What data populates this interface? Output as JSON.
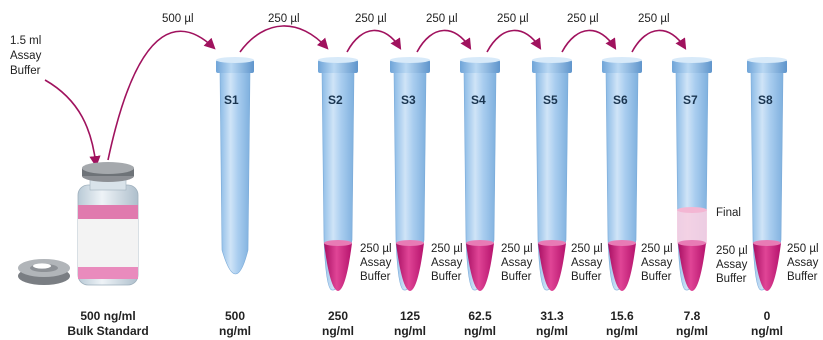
{
  "intro": {
    "line1": "1.5 ml",
    "line2": "Assay",
    "line3": "Buffer"
  },
  "transfers": {
    "t0": "500 µl",
    "t1": "250 µl",
    "t2": "250 µl",
    "t3": "250 µl",
    "t4": "250 µl",
    "t5": "250 µl",
    "t6": "250 µl"
  },
  "tubes": {
    "s1": "S1",
    "s2": "S2",
    "s3": "S3",
    "s4": "S4",
    "s5": "S5",
    "s6": "S6",
    "s7": "S7",
    "s8": "S8"
  },
  "buffer": {
    "volume": "250 µl",
    "line2": "Assay",
    "line3": "Buffer",
    "final": "Final"
  },
  "bottom": {
    "bulk_value": "500 ng/ml",
    "bulk_label": "Bulk Standard",
    "unit": "ng/ml",
    "s1": "500",
    "s2": "250",
    "s3": "125",
    "s4": "62.5",
    "s5": "31.3",
    "s6": "15.6",
    "s7": "7.8",
    "s8": "0"
  },
  "colors": {
    "tube": "#a9cdef",
    "liquid": "#c8157a",
    "arrow": "#a0125e"
  }
}
